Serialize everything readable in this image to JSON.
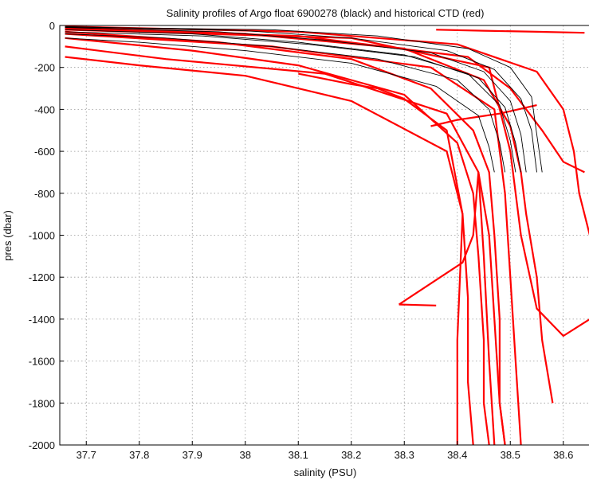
{
  "chart_data": {
    "type": "line",
    "title": "Salinity profiles of Argo float 6900278 (black) and historical CTD (red)",
    "xlabel": "salinity (PSU)",
    "ylabel": "pres (dbar)",
    "xlim": [
      37.65,
      38.65
    ],
    "ylim": [
      -2000,
      0
    ],
    "xticks": [
      37.7,
      37.8,
      37.9,
      38,
      38.1,
      38.2,
      38.3,
      38.4,
      38.5,
      38.6
    ],
    "yticks": [
      0,
      -200,
      -400,
      -600,
      -800,
      -1000,
      -1200,
      -1400,
      -1600,
      -1800,
      -2000
    ],
    "grid": true,
    "series": [
      {
        "name": "historical CTD",
        "color": "#ff0000",
        "profiles": [
          {
            "x": [
              37.66,
              37.95,
              38.2,
              38.35,
              38.43,
              38.46,
              38.47,
              38.48,
              38.48,
              38.49
            ],
            "y": [
              -30,
              -80,
              -160,
              -300,
              -500,
              -700,
              -1000,
              -1400,
              -1800,
              -2000
            ]
          },
          {
            "x": [
              37.66,
              37.9,
              38.1,
              38.3,
              38.4,
              38.43,
              38.44,
              38.45,
              38.45,
              38.46
            ],
            "y": [
              -60,
              -120,
              -190,
              -330,
              -560,
              -800,
              -1100,
              -1500,
              -1800,
              -2000
            ]
          },
          {
            "x": [
              37.66,
              38.0,
              38.3,
              38.45,
              38.5,
              38.52,
              38.53,
              38.55,
              38.56,
              38.58
            ],
            "y": [
              -10,
              -40,
              -110,
              -260,
              -480,
              -700,
              -900,
              -1200,
              -1500,
              -1800
            ]
          },
          {
            "x": [
              37.66,
              37.8,
              38.0,
              38.2,
              38.38,
              38.41,
              38.42,
              38.42,
              38.43
            ],
            "y": [
              -150,
              -190,
              -240,
              -360,
              -600,
              -900,
              -1300,
              -1700,
              -2000
            ]
          },
          {
            "x": [
              37.66,
              38.1,
              38.4,
              38.55,
              38.6,
              38.62,
              38.63,
              38.65
            ],
            "y": [
              -5,
              -30,
              -90,
              -220,
              -400,
              -600,
              -800,
              -1000
            ]
          },
          {
            "x": [
              37.66,
              38.2,
              38.46,
              38.5,
              38.52,
              38.55,
              38.6,
              38.65
            ],
            "y": [
              -20,
              -60,
              -200,
              -600,
              -1000,
              -1350,
              -1480,
              -1400
            ]
          },
          {
            "x": [
              37.66,
              38.05,
              38.35,
              38.47,
              38.49,
              38.5,
              38.51,
              38.52
            ],
            "y": [
              -40,
              -100,
              -200,
              -400,
              -800,
              -1200,
              -1600,
              -2000
            ]
          },
          {
            "x": [
              37.66,
              37.85,
              38.15,
              38.38,
              38.44,
              38.45,
              38.46,
              38.47
            ],
            "y": [
              -100,
              -160,
              -230,
              -420,
              -700,
              -1100,
              -1600,
              -2000
            ]
          },
          {
            "x": [
              38.1,
              38.2,
              38.25,
              38.3,
              38.38,
              38.41,
              38.4,
              38.4
            ],
            "y": [
              -230,
              -280,
              -300,
              -350,
              -500,
              -900,
              -1500,
              -2000
            ]
          },
          {
            "x": [
              38.29,
              38.41,
              38.43,
              38.44
            ],
            "y": [
              -1330,
              -1130,
              -1000,
              -700
            ]
          },
          {
            "x": [
              38.29,
              38.36
            ],
            "y": [
              -1330,
              -1335
            ]
          },
          {
            "x": [
              38.35,
              38.4,
              38.48,
              38.55
            ],
            "y": [
              -480,
              -450,
              -420,
              -380
            ]
          },
          {
            "x": [
              38.44,
              38.46,
              38.47,
              38.48,
              38.49
            ],
            "y": [
              -700,
              -1000,
              -1400,
              -1800,
              -2000
            ]
          },
          {
            "x": [
              37.66,
              38.1,
              38.42,
              38.5,
              38.56,
              38.6,
              38.64
            ],
            "y": [
              -15,
              -50,
              -150,
              -300,
              -500,
              -650,
              -700
            ]
          },
          {
            "x": [
              38.36,
              38.45,
              38.55,
              38.64
            ],
            "y": [
              -20,
              -25,
              -30,
              -35
            ]
          }
        ]
      },
      {
        "name": "Argo float 6900278",
        "color": "#000000",
        "profiles": [
          {
            "x": [
              37.66,
              37.9,
              38.1,
              38.3,
              38.42,
              38.48,
              38.5,
              38.51
            ],
            "y": [
              -20,
              -40,
              -80,
              -140,
              -230,
              -380,
              -550,
              -700
            ]
          },
          {
            "x": [
              37.66,
              37.95,
              38.15,
              38.35,
              38.45,
              38.5,
              38.52,
              38.53
            ],
            "y": [
              -10,
              -30,
              -70,
              -130,
              -220,
              -360,
              -520,
              -700
            ]
          },
          {
            "x": [
              37.66,
              38.0,
              38.2,
              38.38,
              38.47,
              38.52,
              38.54,
              38.55
            ],
            "y": [
              -5,
              -25,
              -60,
              -120,
              -210,
              -350,
              -500,
              -700
            ]
          },
          {
            "x": [
              37.66,
              37.85,
              38.05,
              38.25,
              38.4,
              38.46,
              38.48,
              38.49
            ],
            "y": [
              -40,
              -60,
              -100,
              -160,
              -260,
              -400,
              -560,
              -700
            ]
          },
          {
            "x": [
              37.66,
              37.8,
              38.0,
              38.2,
              38.36,
              38.44,
              38.46,
              38.47
            ],
            "y": [
              -60,
              -80,
              -120,
              -180,
              -290,
              -430,
              -580,
              -700
            ]
          },
          {
            "x": [
              37.66,
              38.05,
              38.25,
              38.42,
              38.5,
              38.54,
              38.55,
              38.56
            ],
            "y": [
              -8,
              -20,
              -50,
              -110,
              -200,
              -340,
              -520,
              -700
            ]
          },
          {
            "x": [
              37.66,
              37.92,
              38.12,
              38.32,
              38.44,
              38.49,
              38.51,
              38.52
            ],
            "y": [
              -30,
              -50,
              -90,
              -150,
              -250,
              -390,
              -560,
              -700
            ]
          }
        ]
      }
    ]
  }
}
